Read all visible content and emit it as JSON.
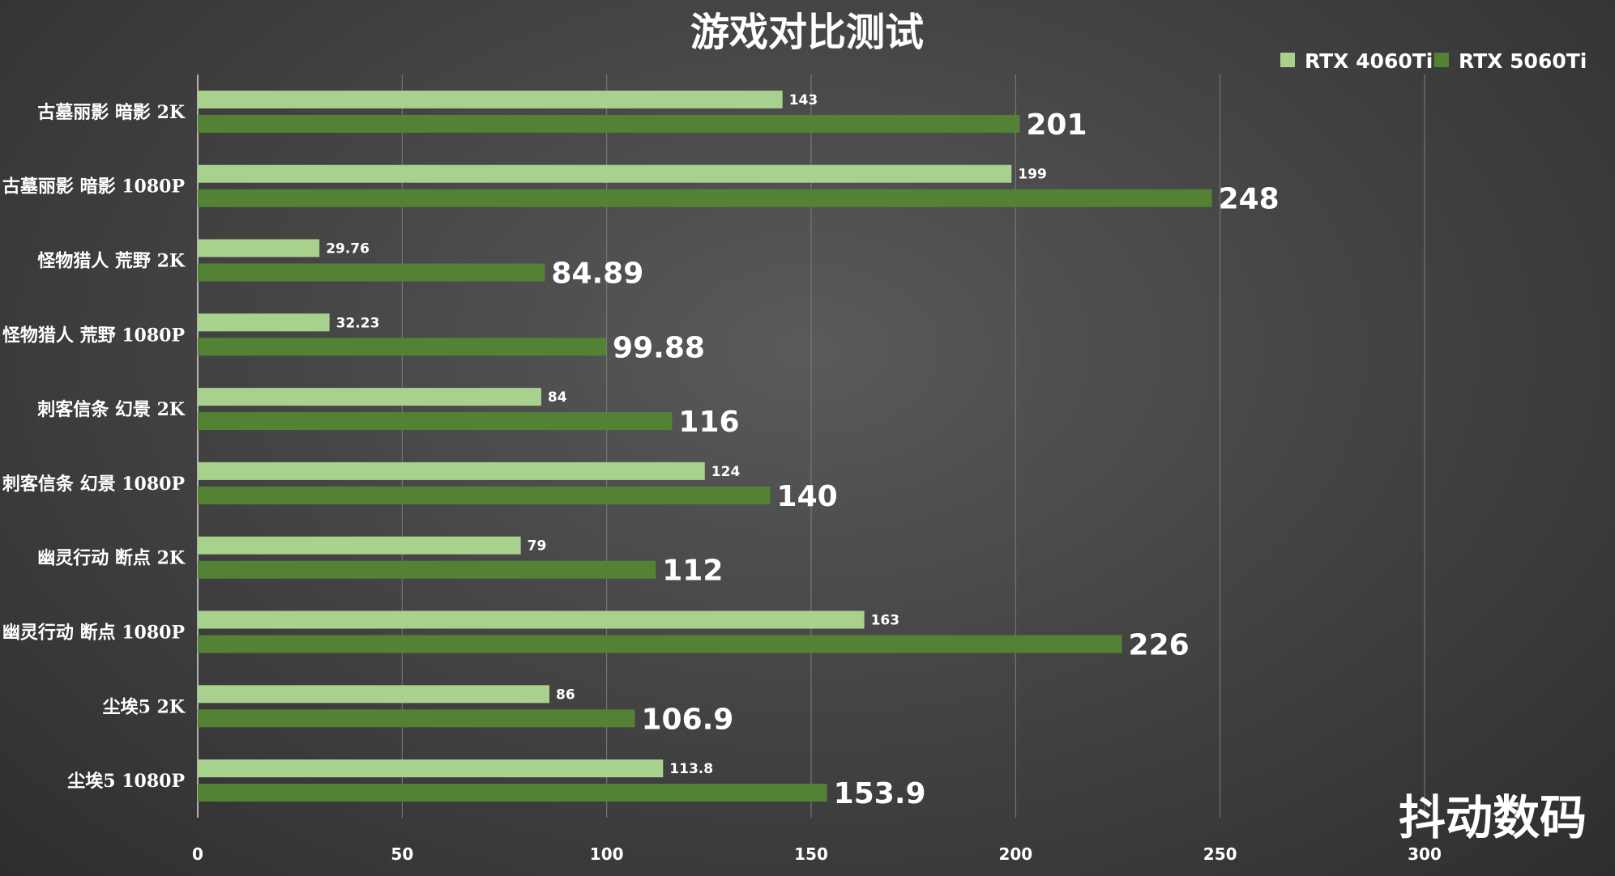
{
  "chart_data": {
    "type": "bar",
    "orientation": "horizontal",
    "title": "游戏对比测试",
    "categories": [
      "古墓丽影 暗影 2K",
      "古墓丽影 暗影 1080P",
      "怪物猎人 荒野 2K",
      "怪物猎人 荒野 1080P",
      "刺客信条 幻景 2K",
      "刺客信条 幻景 1080P",
      "幽灵行动 断点 2K",
      "幽灵行动 断点 1080P",
      "尘埃5 2K",
      "尘埃5 1080P"
    ],
    "series": [
      {
        "name": "RTX 4060Ti",
        "color": "#a9d18e",
        "values": [
          143,
          199,
          29.76,
          32.23,
          84,
          124,
          79,
          163,
          86,
          113.8
        ],
        "labels": [
          "143",
          "199",
          "29.76",
          "32.23",
          "84",
          "124",
          "79",
          "163",
          "86",
          "113.8"
        ]
      },
      {
        "name": "RTX 5060Ti",
        "color": "#548235",
        "values": [
          201,
          248,
          84.89,
          99.88,
          116,
          140,
          112,
          226,
          106.9,
          153.9
        ],
        "labels": [
          "201",
          "248",
          "84.89",
          "99.88",
          "116",
          "140",
          "112",
          "226",
          "106.9",
          "153.9"
        ]
      }
    ],
    "x_ticks": [
      "0",
      "50",
      "100",
      "150",
      "200",
      "250",
      "300"
    ],
    "xlim": [
      0,
      300
    ],
    "grid": true,
    "legend_position": "top-right"
  },
  "watermark": "抖动数码"
}
